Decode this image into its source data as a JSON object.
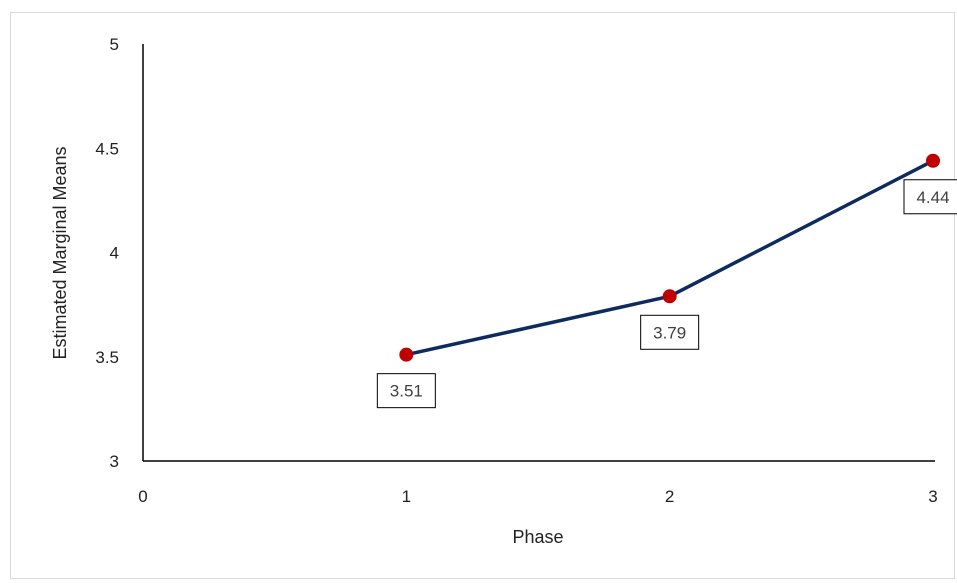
{
  "chart_data": {
    "type": "line",
    "title": "",
    "xlabel": "Phase",
    "ylabel": "Estimated Marginal Means",
    "xlim": [
      0,
      3
    ],
    "ylim": [
      3,
      5
    ],
    "x_ticks": [
      0,
      1,
      2,
      3
    ],
    "y_ticks": [
      3,
      3.5,
      4,
      4.5,
      5
    ],
    "grid": false,
    "legend": "none",
    "series": [
      {
        "x": [
          1,
          2,
          3
        ],
        "y": [
          3.51,
          3.79,
          4.44
        ],
        "labels": [
          "3.51",
          "3.79",
          "4.44"
        ],
        "line_color": "#0d2b5e",
        "marker_color": "#c00000"
      }
    ]
  }
}
